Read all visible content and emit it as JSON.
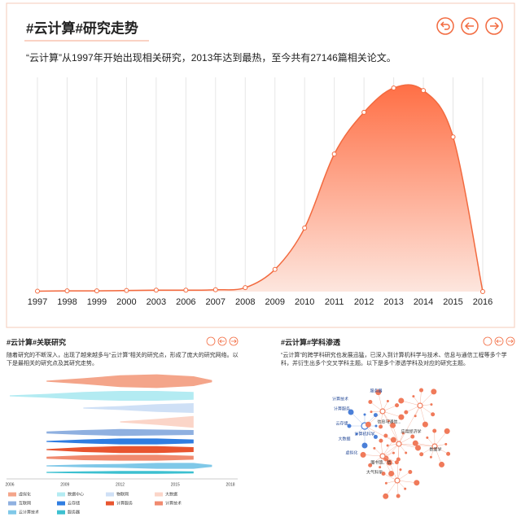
{
  "chart_data": [
    {
      "type": "area",
      "title": "#云计算#研究走势",
      "subtitle": "“云计算”从1997年开始出现相关研究，2013年达到最热，至今共有27146篇相关论文。",
      "categories": [
        "1997",
        "1998",
        "1999",
        "2000",
        "2003",
        "2006",
        "2007",
        "2008",
        "2009",
        "2010",
        "2011",
        "2012",
        "2013",
        "2014",
        "2015",
        "2016"
      ],
      "values": [
        10,
        20,
        20,
        30,
        40,
        40,
        50,
        110,
        620,
        1780,
        3850,
        5020,
        5700,
        5630,
        4330,
        0
      ],
      "color": "#f26a3f",
      "grid": true
    },
    {
      "type": "stream",
      "title": "#云计算#关联研究",
      "subtitle": "随着研究的不断深入，出现了越来越多与“云计算”相关的研究点，形成了庞大的研究网络。以下是最相关的研究点及其研究走势。",
      "x": [
        2006,
        2008,
        2010,
        2012,
        2014,
        2016,
        2017
      ],
      "xlim": [
        2006,
        2018
      ],
      "xticks": [
        2006,
        2009,
        2012,
        2015,
        2018
      ],
      "series": [
        {
          "name": "虚拟化",
          "color": "#f4a58a",
          "values": [
            null,
            1,
            6,
            12,
            14,
            10,
            2
          ]
        },
        {
          "name": "数据中心",
          "color": "#b3ebf2",
          "values": [
            1,
            4,
            8,
            10,
            10,
            8,
            null
          ]
        },
        {
          "name": "物联网",
          "color": "#cfe0f6",
          "values": [
            null,
            null,
            1,
            4,
            8,
            10,
            null
          ]
        },
        {
          "name": "大数据",
          "color": "#fbd5c8",
          "values": [
            null,
            null,
            null,
            1,
            6,
            12,
            null
          ]
        },
        {
          "name": "互联网",
          "color": "#8fb0e0",
          "values": [
            null,
            2,
            5,
            7,
            6,
            5,
            null
          ]
        },
        {
          "name": "云存储",
          "color": "#2f7de1",
          "values": [
            null,
            1,
            4,
            6,
            6,
            4,
            null
          ]
        },
        {
          "name": "计算服务",
          "color": "#e8542f",
          "values": [
            null,
            1,
            5,
            7,
            7,
            5,
            null
          ]
        },
        {
          "name": "计算技术",
          "color": "#f08a6f",
          "values": [
            null,
            2,
            5,
            6,
            6,
            4,
            null
          ]
        },
        {
          "name": "云计算技术",
          "color": "#7fc8e8",
          "values": [
            null,
            1,
            3,
            4,
            6,
            6,
            2
          ]
        },
        {
          "name": "服务器",
          "color": "#3cc0d0",
          "values": [
            null,
            1,
            2,
            3,
            3,
            2,
            null
          ]
        }
      ]
    },
    {
      "type": "network",
      "title": "#云计算#学科渗透",
      "subtitle": "“云计算”的跨学科研究也发展迅猛，已深入到计算机科学与技术、信息与通信工程等多个学科，并衍生出多个交叉学科主题。以下是多个渗透学科及对应的研究主题。",
      "nodes": [
        {
          "label": "服务器",
          "color": "#4a7fd8"
        },
        {
          "label": "计算技术",
          "color": "#4a7fd8"
        },
        {
          "label": "计算服务",
          "color": "#4a7fd8"
        },
        {
          "label": "云存储",
          "color": "#4a7fd8"
        },
        {
          "label": "计算机科学",
          "color": "#4a7fd8"
        },
        {
          "label": "大数据",
          "color": "#4a7fd8"
        },
        {
          "label": "虚拟化",
          "color": "#4a7fd8"
        },
        {
          "label": "信息与通信...",
          "color": "#f07a5a"
        },
        {
          "label": "应用经济学",
          "color": "#f07a5a"
        },
        {
          "label": "数量学",
          "color": "#f07a5a"
        },
        {
          "label": "图书馆、情...",
          "color": "#f07a5a"
        },
        {
          "label": "大气科学",
          "color": "#f07a5a"
        }
      ]
    }
  ]
}
